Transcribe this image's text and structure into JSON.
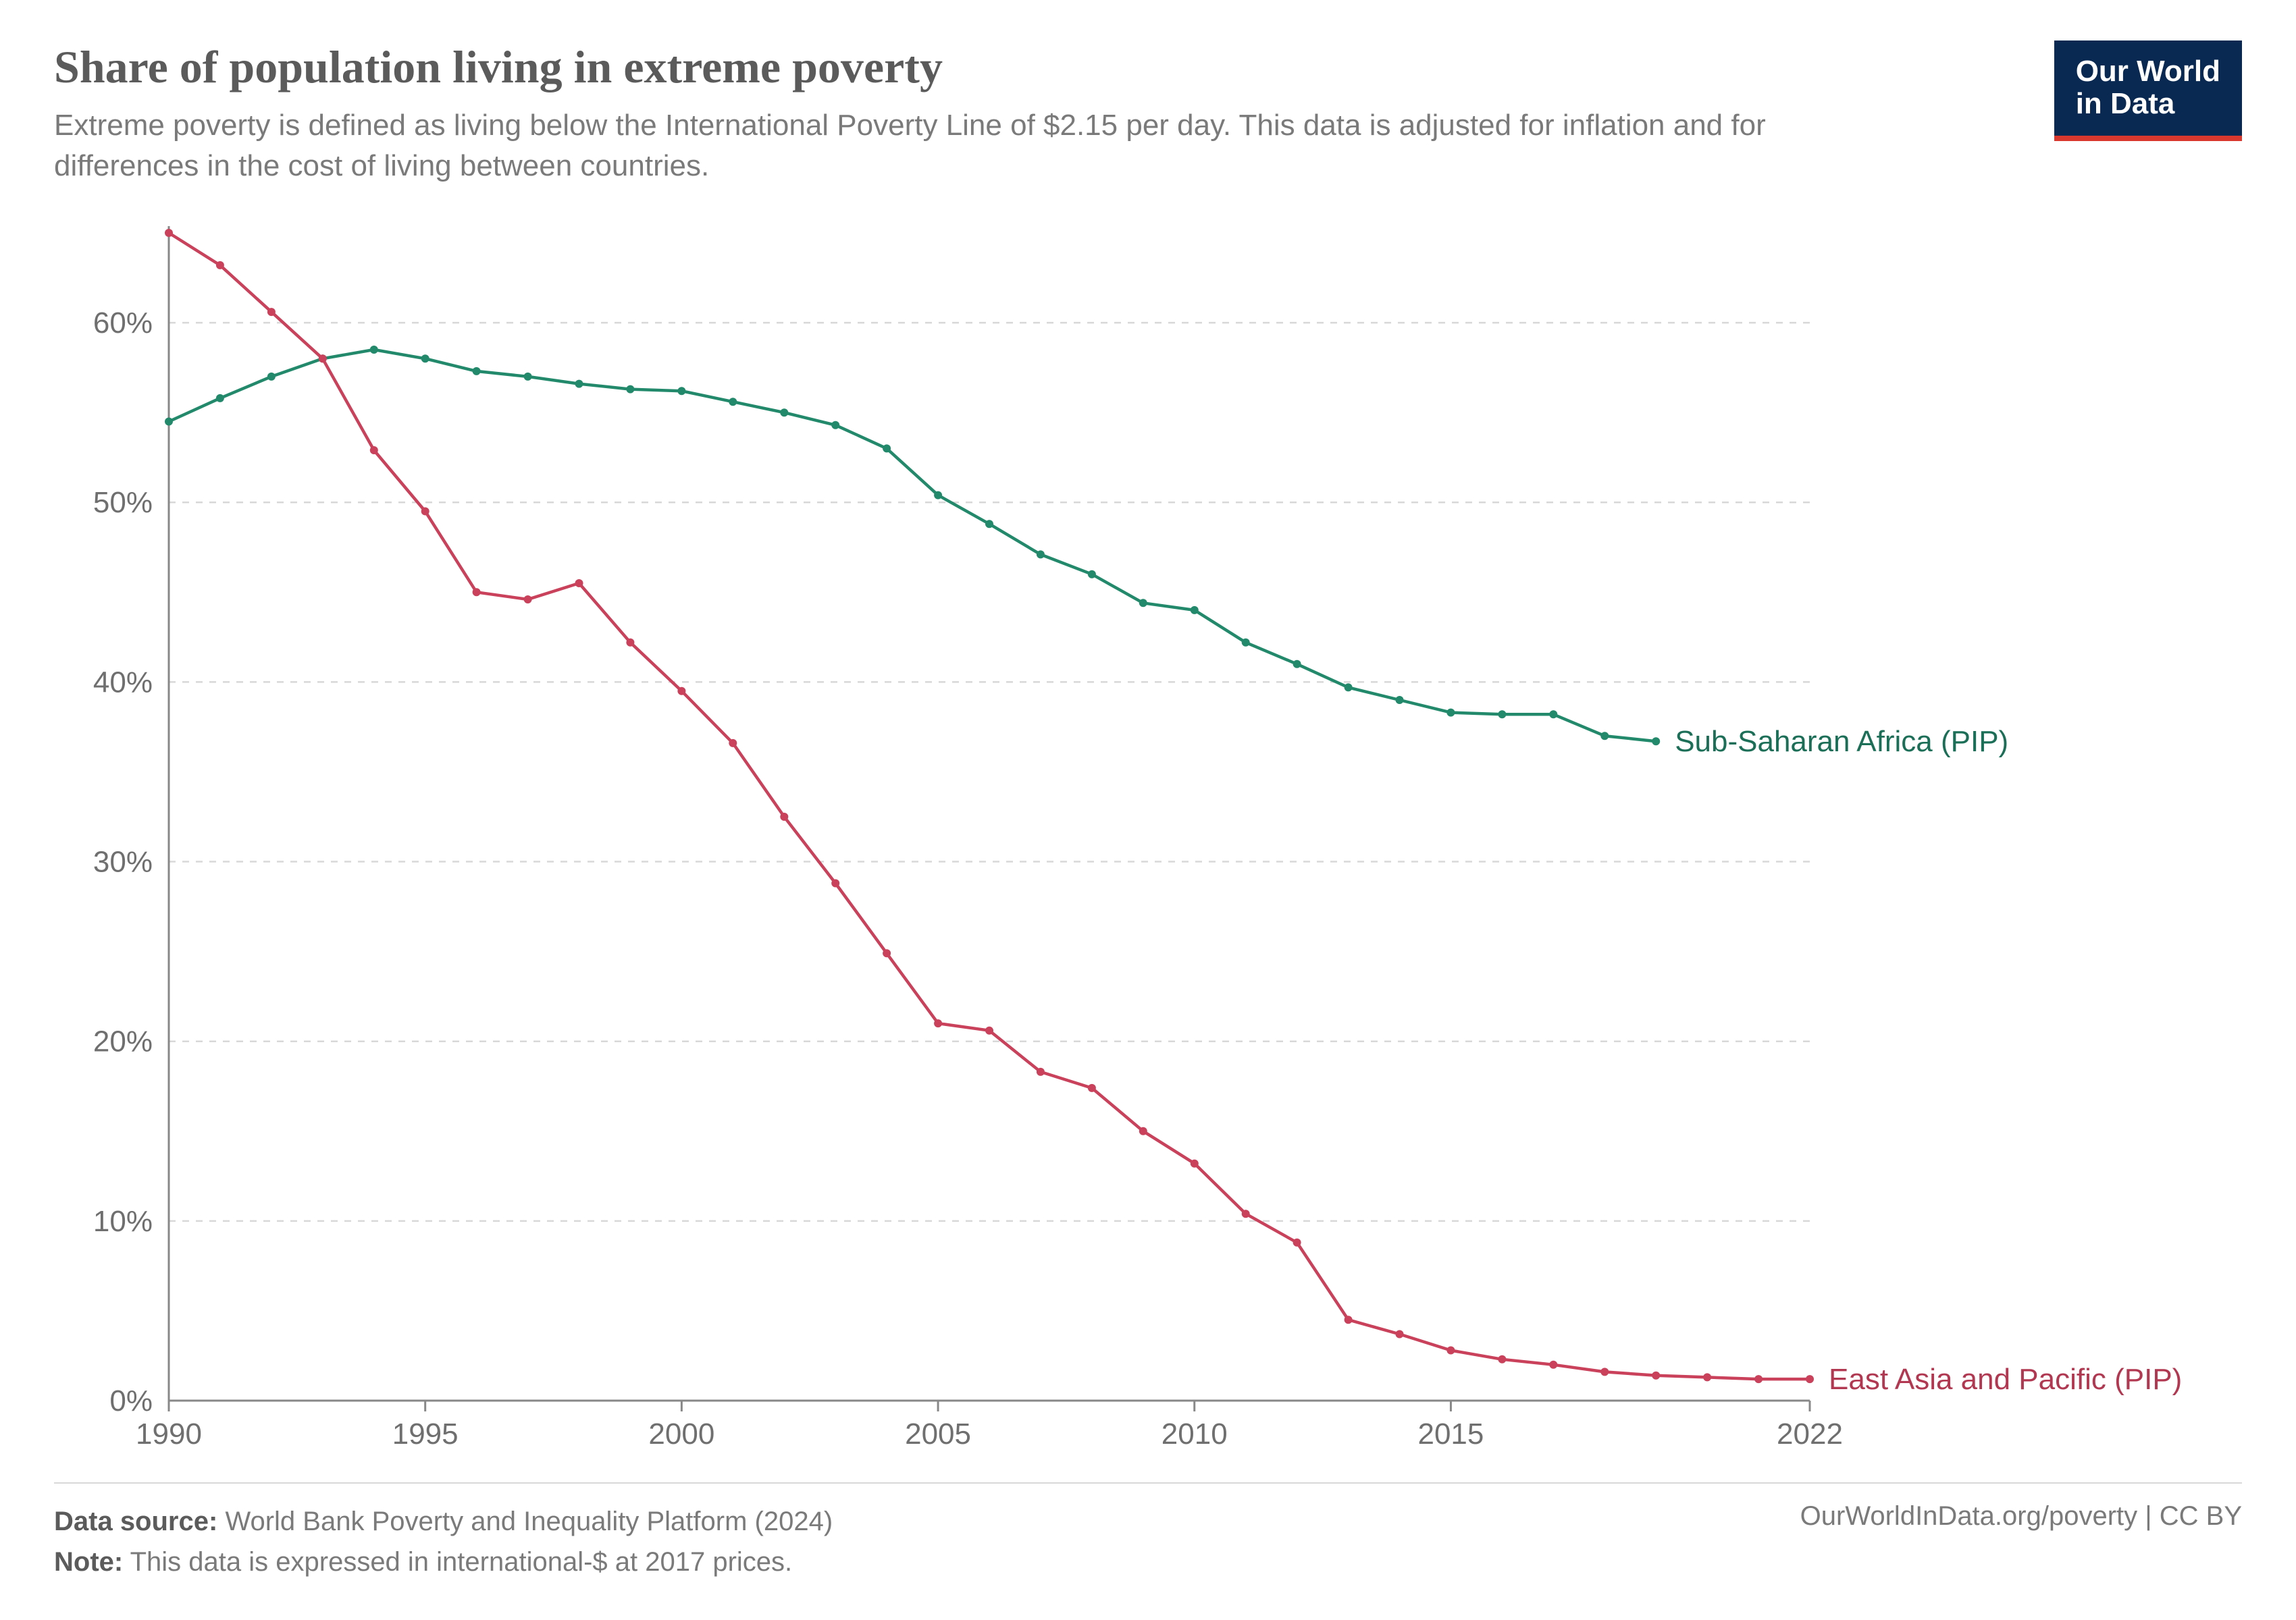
{
  "header": {
    "title": "Share of population living in extreme poverty",
    "subtitle": "Extreme poverty is defined as living below the International Poverty Line of $2.15 per day. This data is adjusted for inflation and for differences in the cost of living between countries."
  },
  "logo": {
    "line1": "Our World",
    "line2": "in Data",
    "bg_color": "#0a2952",
    "text_color": "#ffffff",
    "underline_color": "#d9382f"
  },
  "chart": {
    "type": "line",
    "background_color": "#ffffff",
    "grid_color": "#d8d8d8",
    "axis_color": "#888888",
    "tick_label_color": "#6f6f6f",
    "tick_fontsize": 44,
    "xlim": [
      1990,
      2022
    ],
    "ylim": [
      0,
      65
    ],
    "x_ticks": [
      1990,
      1995,
      2000,
      2005,
      2010,
      2015,
      2022
    ],
    "y_ticks": [
      0,
      10,
      20,
      30,
      40,
      50,
      60
    ],
    "y_tick_suffix": "%",
    "line_width": 4.5,
    "marker_radius": 6,
    "series": [
      {
        "name": "Sub-Saharan Africa (PIP)",
        "color": "#228a6b",
        "label_color": "#1b6f57",
        "years": [
          1990,
          1991,
          1992,
          1993,
          1994,
          1995,
          1996,
          1997,
          1998,
          1999,
          2000,
          2001,
          2002,
          2003,
          2004,
          2005,
          2006,
          2007,
          2008,
          2009,
          2010,
          2011,
          2012,
          2013,
          2014,
          2015,
          2016,
          2017,
          2018,
          2019
        ],
        "values": [
          54.5,
          55.8,
          57.0,
          58.0,
          58.5,
          58.0,
          57.3,
          57.0,
          56.6,
          56.3,
          56.2,
          55.6,
          55.0,
          54.3,
          53.0,
          50.4,
          48.8,
          47.1,
          46.0,
          44.4,
          44.0,
          42.2,
          41.0,
          39.7,
          39.0,
          38.3,
          38.2,
          38.2,
          37.0,
          36.7
        ]
      },
      {
        "name": "East Asia and Pacific (PIP)",
        "color": "#c9415a",
        "label_color": "#b23851",
        "years": [
          1990,
          1991,
          1992,
          1993,
          1994,
          1995,
          1996,
          1997,
          1998,
          1999,
          2000,
          2001,
          2002,
          2003,
          2004,
          2005,
          2006,
          2007,
          2008,
          2009,
          2010,
          2011,
          2012,
          2013,
          2014,
          2015,
          2016,
          2017,
          2018,
          2019,
          2020,
          2021,
          2022
        ],
        "values": [
          65.0,
          63.2,
          60.6,
          58.0,
          52.9,
          49.5,
          45.0,
          44.6,
          45.5,
          42.2,
          39.5,
          36.6,
          32.5,
          28.8,
          24.9,
          21.0,
          20.6,
          18.3,
          17.4,
          15.0,
          13.2,
          10.4,
          8.8,
          4.5,
          3.7,
          2.8,
          2.3,
          2.0,
          1.6,
          1.4,
          1.3,
          1.2,
          1.2
        ]
      }
    ]
  },
  "footer": {
    "source_label": "Data source:",
    "source_text": "World Bank Poverty and Inequality Platform (2024)",
    "note_label": "Note:",
    "note_text": "This data is expressed in international-$ at 2017 prices.",
    "right_text": "OurWorldInData.org/poverty | CC BY"
  }
}
